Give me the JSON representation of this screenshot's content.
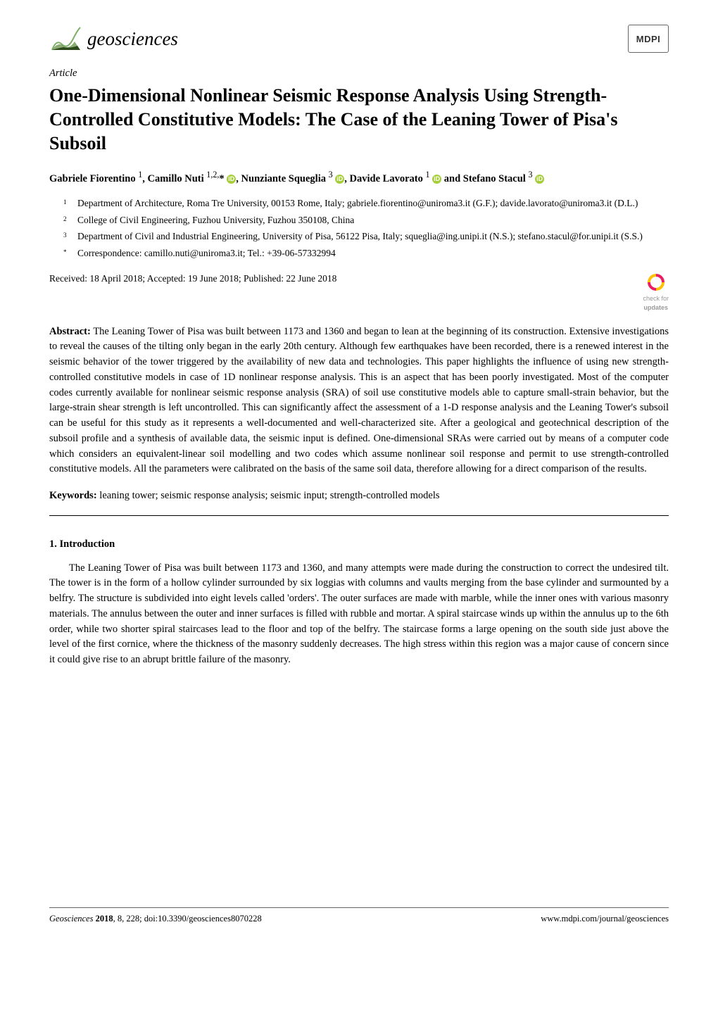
{
  "journal": {
    "name": "geosciences",
    "logo_colors": {
      "top": "#7fb069",
      "middle": "#5a8a3a",
      "bottom": "#2d4a1a"
    }
  },
  "publisher_logo": "MDPI",
  "article_type": "Article",
  "title": "One-Dimensional Nonlinear Seismic Response Analysis Using Strength-Controlled Constitutive Models: The Case of the Leaning Tower of Pisa's Subsoil",
  "authors_html": "Gabriele Fiorentino <sup>1</sup>, Camillo Nuti <sup>1,2,</sup>* <span class='orcid' data-name='orcid-icon' data-interactable='false'>iD</span>, Nunziante Squeglia <sup>3</sup> <span class='orcid' data-name='orcid-icon' data-interactable='false'>iD</span>, Davide Lavorato <sup>1</sup> <span class='orcid' data-name='orcid-icon' data-interactable='false'>iD</span> and Stefano Stacul <sup>3</sup> <span class='orcid' data-name='orcid-icon' data-interactable='false'>iD</span>",
  "affiliations": [
    {
      "num": "1",
      "text": "Department of Architecture, Roma Tre University, 00153 Rome, Italy; gabriele.fiorentino@uniroma3.it (G.F.); davide.lavorato@uniroma3.it (D.L.)"
    },
    {
      "num": "2",
      "text": "College of Civil Engineering, Fuzhou University, Fuzhou 350108, China"
    },
    {
      "num": "3",
      "text": "Department of Civil and Industrial Engineering, University of Pisa, 56122 Pisa, Italy; squeglia@ing.unipi.it (N.S.); stefano.stacul@for.unipi.it (S.S.)"
    },
    {
      "num": "*",
      "text": "Correspondence: camillo.nuti@uniroma3.it; Tel.: +39-06-57332994"
    }
  ],
  "dates": "Received: 18 April 2018; Accepted: 19 June 2018; Published: 22 June 2018",
  "check_updates": {
    "line1": "check for",
    "line2": "updates"
  },
  "abstract_label": "Abstract:",
  "abstract": "The Leaning Tower of Pisa was built between 1173 and 1360 and began to lean at the beginning of its construction. Extensive investigations to reveal the causes of the tilting only began in the early 20th century. Although few earthquakes have been recorded, there is a renewed interest in the seismic behavior of the tower triggered by the availability of new data and technologies. This paper highlights the influence of using new strength-controlled constitutive models in case of 1D nonlinear response analysis. This is an aspect that has been poorly investigated. Most of the computer codes currently available for nonlinear seismic response analysis (SRA) of soil use constitutive models able to capture small-strain behavior, but the large-strain shear strength is left uncontrolled. This can significantly affect the assessment of a 1-D response analysis and the Leaning Tower's subsoil can be useful for this study as it represents a well-documented and well-characterized site. After a geological and geotechnical description of the subsoil profile and a synthesis of available data, the seismic input is defined. One-dimensional SRAs were carried out by means of a computer code which considers an equivalent-linear soil modelling and two codes which assume nonlinear soil response and permit to use strength-controlled constitutive models. All the parameters were calibrated on the basis of the same soil data, therefore allowing for a direct comparison of the results.",
  "keywords_label": "Keywords:",
  "keywords": "leaning tower; seismic response analysis; seismic input; strength-controlled models",
  "section_heading": "1. Introduction",
  "body_para": "The Leaning Tower of Pisa was built between 1173 and 1360, and many attempts were made during the construction to correct the undesired tilt. The tower is in the form of a hollow cylinder surrounded by six loggias with columns and vaults merging from the base cylinder and surmounted by a belfry. The structure is subdivided into eight levels called 'orders'. The outer surfaces are made with marble, while the inner ones with various masonry materials. The annulus between the outer and inner surfaces is filled with rubble and mortar. A spiral staircase winds up within the annulus up to the 6th order, while two shorter spiral staircases lead to the floor and top of the belfry. The staircase forms a large opening on the south side just above the level of the first cornice, where the thickness of the masonry suddenly decreases. The high stress within this region was a major cause of concern since it could give rise to an abrupt brittle failure of the masonry.",
  "footer": {
    "left_italic": "Geosciences",
    "left_bold": "2018",
    "left_vol_doi": ", 8, 228; doi:10.3390/geosciences8070228",
    "right": "www.mdpi.com/journal/geosciences"
  },
  "colors": {
    "orcid_bg": "#a6ce39",
    "text": "#000000",
    "bg": "#ffffff",
    "updates_pink": "#e91e63",
    "updates_yellow": "#ffc107"
  }
}
